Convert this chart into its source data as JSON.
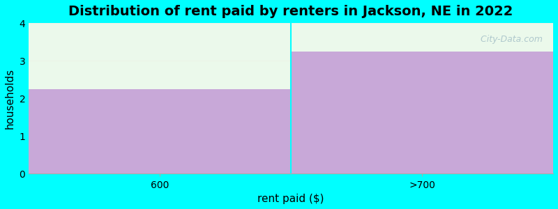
{
  "title": "Distribution of rent paid by renters in Jackson, NE in 2022",
  "categories": [
    "600",
    ">700"
  ],
  "values": [
    2.25,
    3.25
  ],
  "bar_color": "#c8a8d8",
  "green_overlay_color": "#e8f8e8",
  "green_overlay_alpha": 0.85,
  "xlabel": "rent paid ($)",
  "ylabel": "households",
  "ylim": [
    0,
    4
  ],
  "yticks": [
    0,
    1,
    2,
    3,
    4
  ],
  "background_color": "#00ffff",
  "axes_bg_color": "#ffffff",
  "title_fontsize": 14,
  "label_fontsize": 11,
  "watermark_text": " City-Data.com",
  "watermark_color": "#96b4c0",
  "watermark_alpha": 0.7
}
